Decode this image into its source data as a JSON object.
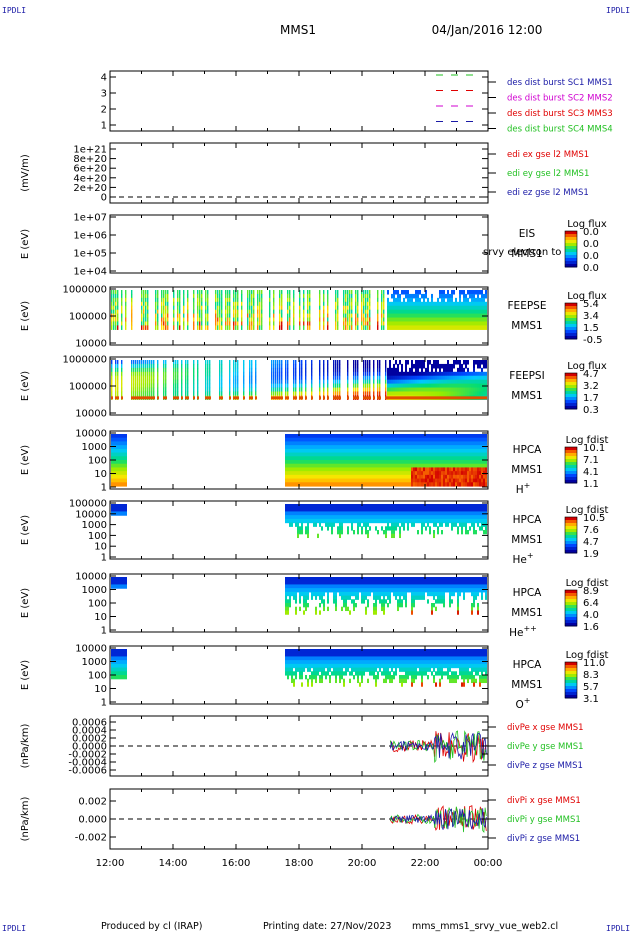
{
  "header": {
    "corner_label": "IPDLI",
    "spacecraft": "MMS1",
    "datetime": "04/Jan/2016 12:00"
  },
  "footer": {
    "produced_by": "Produced by cl (IRAP)",
    "printing_date": "Printing date: 27/Nov/2023",
    "filename": "mms_mms1_srvy_vue_web2.cl"
  },
  "colors": {
    "black": "#000000",
    "green": "#22c022",
    "red": "#e00000",
    "magenta": "#d000d0",
    "blue": "#1a1aa6"
  },
  "chart_data": [
    {
      "id": "des-dist",
      "type": "line",
      "y_ticks": [
        "4",
        "3",
        "2",
        "1"
      ],
      "ylim": [
        0.5,
        4.5
      ],
      "legend": [
        {
          "name": "des dist burst SC1 MMS1",
          "color": "#1a1aa6",
          "line_color": "#22c022"
        },
        {
          "name": "des dist burst SC2 MMS2",
          "color": "#d000d0",
          "line_color": "#e00000"
        },
        {
          "name": "des dist burst SC3 MMS3",
          "color": "#e00000",
          "line_color": "#d000d0"
        },
        {
          "name": "des dist burst SC4 MMS4",
          "color": "#22c022",
          "line_color": "#1a1aa6"
        }
      ]
    },
    {
      "id": "edi",
      "type": "line",
      "ylabel": "(mV/m)",
      "y_ticks": [
        "1e+21",
        "8e+20",
        "6e+20",
        "4e+20",
        "2e+20",
        "0"
      ],
      "ylim": [
        0,
        1e+21
      ],
      "legend": [
        {
          "name": "edi ex gse l2 MMS1",
          "color": "#e00000"
        },
        {
          "name": "edi ey gse l2 MMS1",
          "color": "#22c022"
        },
        {
          "name": "edi ez gse l2 MMS1",
          "color": "#1a1aa6"
        }
      ]
    },
    {
      "id": "eis",
      "type": "heatmap",
      "ylabel": "E (eV)",
      "y_ticks": [
        "1e+07",
        "1e+06",
        "1e+05",
        "1e+04"
      ],
      "scale": "log",
      "right_label": "EIS",
      "right_overlay": "srvy electron to",
      "right_sub": "MMS1",
      "colorbar_title": "Log flux",
      "colorbar_ticks": [
        "0.0",
        "0.0",
        "0.0",
        "0.0"
      ]
    },
    {
      "id": "feepse",
      "type": "heatmap",
      "ylabel": "E (eV)",
      "y_ticks": [
        "1000000",
        "100000",
        "10000"
      ],
      "scale": "log",
      "right_label": "FEEPSE",
      "right_sub": "MMS1",
      "colorbar_title": "Log flux",
      "colorbar_ticks": [
        "5.4",
        "3.4",
        "1.5",
        "-0.5"
      ]
    },
    {
      "id": "feepsi",
      "type": "heatmap",
      "ylabel": "E (eV)",
      "y_ticks": [
        "1000000",
        "100000",
        "10000"
      ],
      "scale": "log",
      "right_label": "FEEPSI",
      "right_sub": "MMS1",
      "colorbar_title": "Log flux",
      "colorbar_ticks": [
        "4.7",
        "3.2",
        "1.7",
        "0.3"
      ]
    },
    {
      "id": "hpca-h",
      "type": "heatmap",
      "ylabel": "E (eV)",
      "y_ticks": [
        "10000",
        "1000",
        "100",
        "10",
        "1"
      ],
      "scale": "log",
      "right_label": "HPCA",
      "right_sub": "MMS1",
      "species": "H",
      "species_sup": "+",
      "colorbar_title": "Log fdist",
      "colorbar_ticks": [
        "10.1",
        "7.1",
        "4.1",
        "1.1"
      ]
    },
    {
      "id": "hpca-he",
      "type": "heatmap",
      "ylabel": "E (eV)",
      "y_ticks": [
        "100000",
        "10000",
        "1000",
        "100",
        "10",
        "1"
      ],
      "scale": "log",
      "right_label": "HPCA",
      "right_sub": "MMS1",
      "species": "He",
      "species_sup": "+",
      "colorbar_title": "Log fdist",
      "colorbar_ticks": [
        "10.5",
        "7.6",
        "4.7",
        "1.9"
      ]
    },
    {
      "id": "hpca-he2",
      "type": "heatmap",
      "ylabel": "E (eV)",
      "y_ticks": [
        "10000",
        "1000",
        "100",
        "10",
        "1"
      ],
      "scale": "log",
      "right_label": "HPCA",
      "right_sub": "MMS1",
      "species": "He",
      "species_sup": "++",
      "colorbar_title": "Log fdist",
      "colorbar_ticks": [
        "8.9",
        "6.4",
        "4.0",
        "1.6"
      ]
    },
    {
      "id": "hpca-o",
      "type": "heatmap",
      "ylabel": "E (eV)",
      "y_ticks": [
        "10000",
        "1000",
        "100",
        "10",
        "1"
      ],
      "scale": "log",
      "right_label": "HPCA",
      "right_sub": "MMS1",
      "species": "O",
      "species_sup": "+",
      "colorbar_title": "Log fdist",
      "colorbar_ticks": [
        "11.0",
        "8.3",
        "5.7",
        "3.1"
      ]
    },
    {
      "id": "divpe",
      "type": "line",
      "ylabel": "(nPa/km)",
      "y_ticks": [
        "0.0006",
        "0.0004",
        "0.0002",
        "0.0000",
        "-0.0002",
        "-0.0004",
        "-0.0006"
      ],
      "ylim": [
        -0.0007,
        0.0007
      ],
      "legend": [
        {
          "name": "divPe x gse MMS1",
          "color": "#e00000"
        },
        {
          "name": "divPe y gse MMS1",
          "color": "#22c022"
        },
        {
          "name": "divPe z gse MMS1",
          "color": "#1a1aa6"
        }
      ]
    },
    {
      "id": "divpi",
      "type": "line",
      "ylabel": "(nPa/km)",
      "y_ticks": [
        "0.002",
        "0.000",
        "-0.002"
      ],
      "ylim": [
        -0.003,
        0.003
      ],
      "legend": [
        {
          "name": "divPi x gse MMS1",
          "color": "#e00000"
        },
        {
          "name": "divPi y gse MMS1",
          "color": "#22c022"
        },
        {
          "name": "divPi z gse MMS1",
          "color": "#1a1aa6"
        }
      ]
    }
  ],
  "x_axis": {
    "ticks": [
      "12:00",
      "14:00",
      "16:00",
      "18:00",
      "20:00",
      "22:00",
      "00:00"
    ],
    "range_hours": [
      12,
      24
    ]
  }
}
